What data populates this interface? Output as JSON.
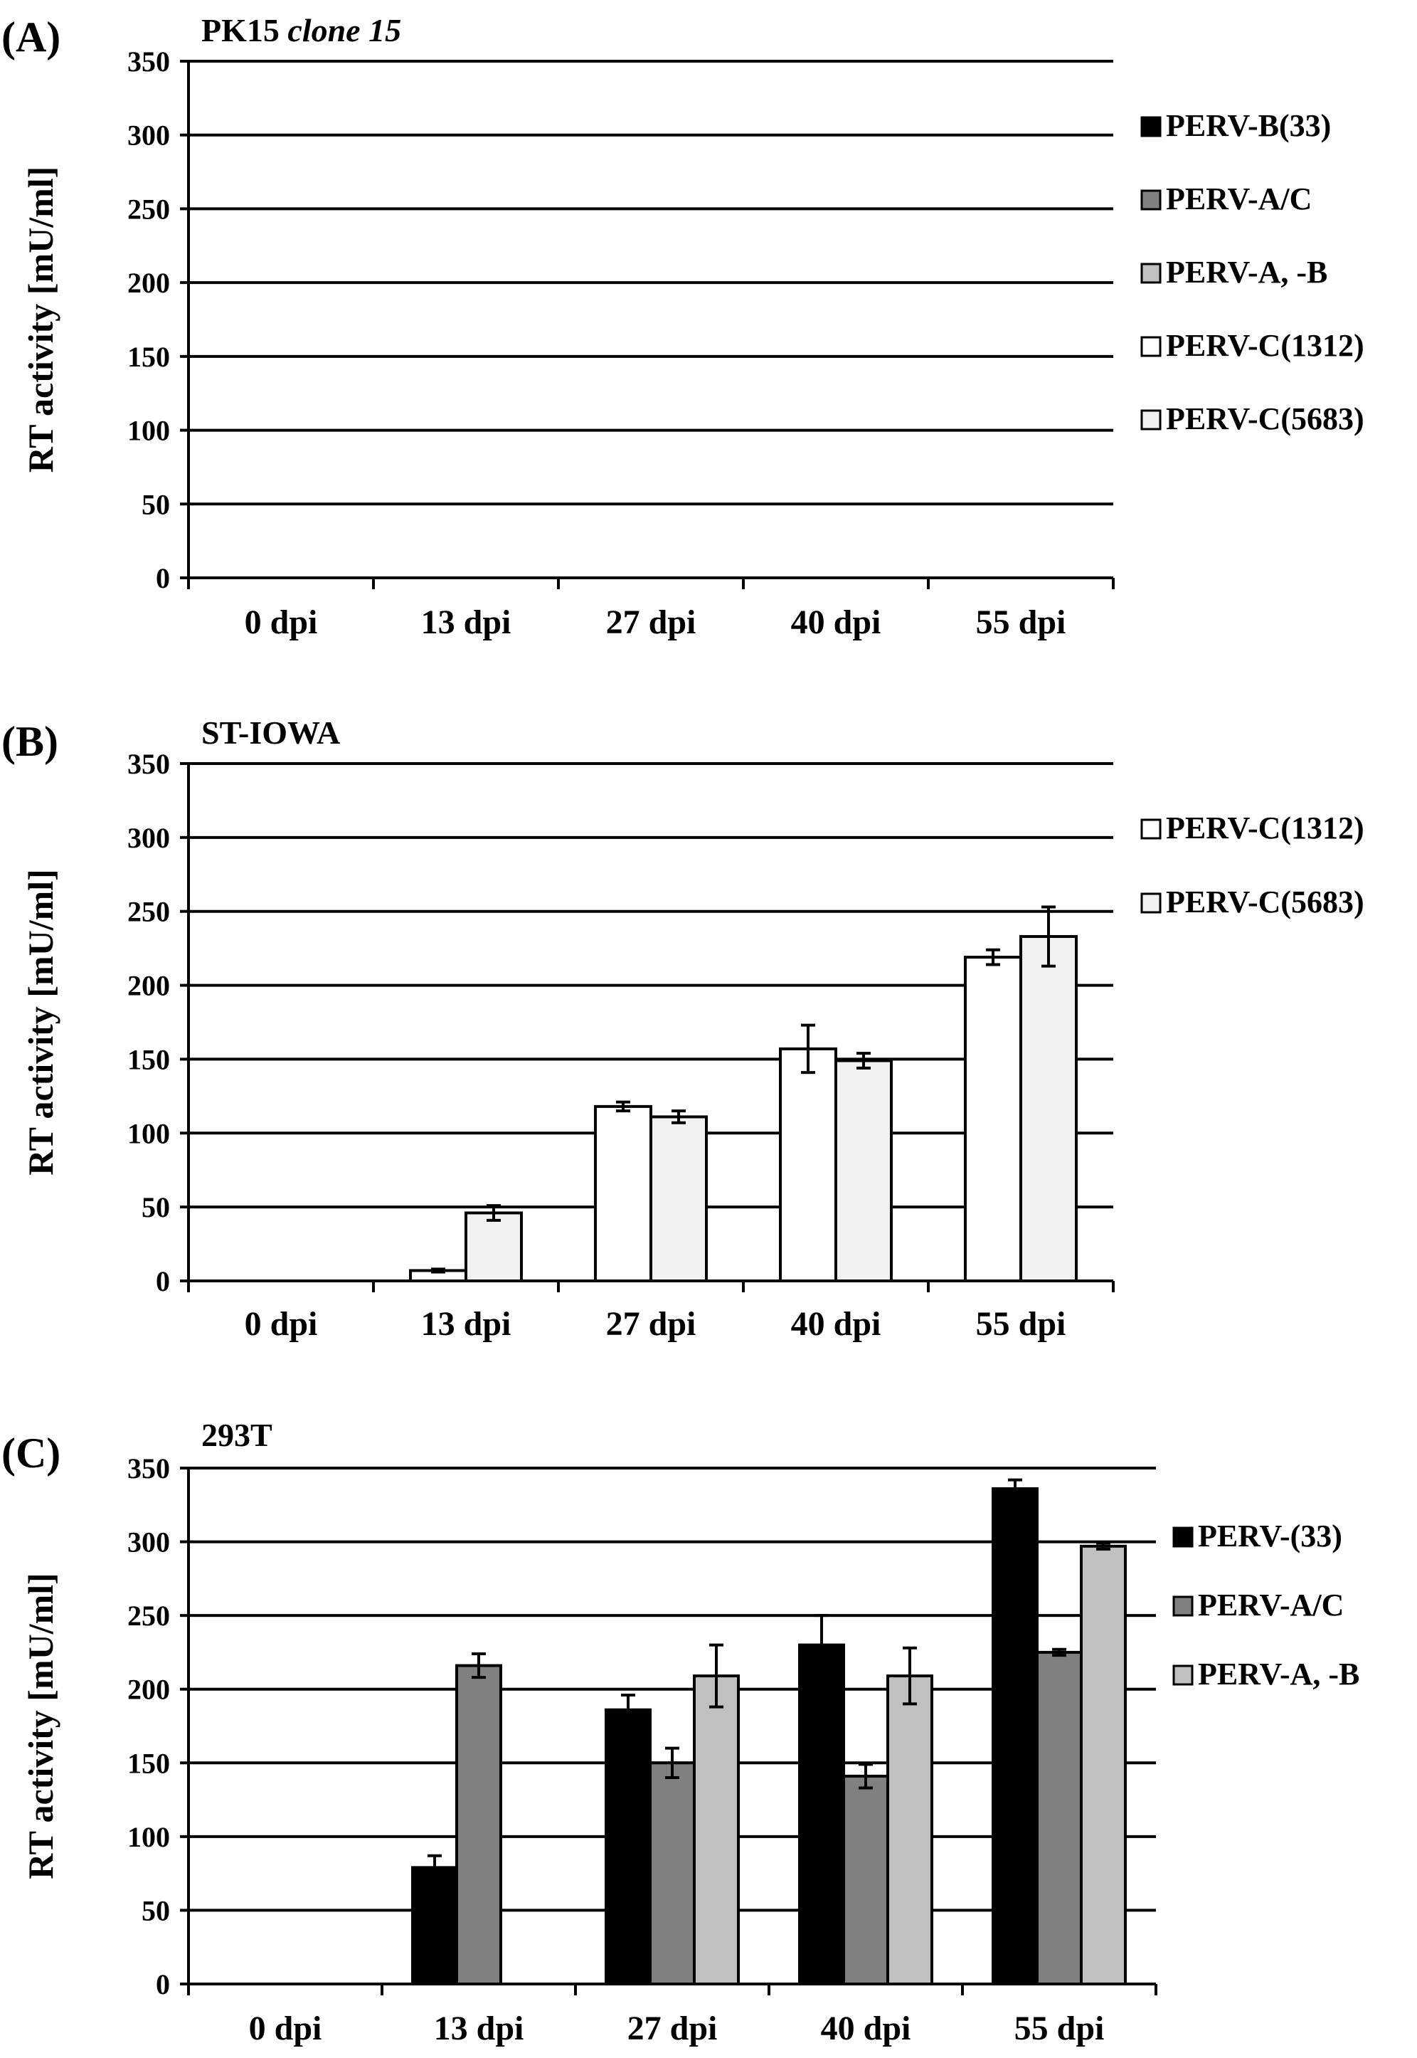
{
  "chart_data": [
    {
      "type": "bar",
      "panel_label": "(A)",
      "title": "PK15 ",
      "title_italic": "clone 15",
      "ylabel": "RT activity [mU/ml]",
      "xlabel": "",
      "ylim": [
        0,
        350
      ],
      "yticks": [
        0,
        50,
        100,
        150,
        200,
        250,
        300,
        350
      ],
      "grid": true,
      "legend_position": "right",
      "categories": [
        "0 dpi",
        "13 dpi",
        "27 dpi",
        "40 dpi",
        "55 dpi"
      ],
      "legend": [
        {
          "name": "PERV-B(33)",
          "color": "#000000"
        },
        {
          "name": "PERV-A/C",
          "color": "#808080"
        },
        {
          "name": "PERV-A, -B",
          "color": "#c0c0c0"
        },
        {
          "name": "PERV-C(1312)",
          "color": "#ffffff"
        },
        {
          "name": "PERV-C(5683)",
          "color": "#f2f2f2"
        }
      ],
      "series": [
        {
          "name": "PERV-B(33)",
          "color": "#000000",
          "values": [
            0,
            0,
            0,
            0,
            0
          ],
          "errors": [
            0,
            0,
            0,
            0,
            0
          ]
        },
        {
          "name": "PERV-A/C",
          "color": "#808080",
          "values": [
            0,
            0,
            0,
            0,
            0
          ],
          "errors": [
            0,
            0,
            0,
            0,
            0
          ]
        },
        {
          "name": "PERV-A, -B",
          "color": "#c0c0c0",
          "values": [
            0,
            0,
            0,
            0,
            0
          ],
          "errors": [
            0,
            0,
            0,
            0,
            0
          ]
        },
        {
          "name": "PERV-C(1312)",
          "color": "#ffffff",
          "values": [
            0,
            0,
            0,
            0,
            0
          ],
          "errors": [
            0,
            0,
            0,
            0,
            0
          ]
        },
        {
          "name": "PERV-C(5683)",
          "color": "#f2f2f2",
          "values": [
            0,
            0,
            0,
            0,
            0
          ],
          "errors": [
            0,
            0,
            0,
            0,
            0
          ]
        }
      ]
    },
    {
      "type": "bar",
      "panel_label": "(B)",
      "title": "ST-IOWA",
      "title_italic": "",
      "ylabel": "RT activity [mU/ml]",
      "xlabel": "",
      "ylim": [
        0,
        350
      ],
      "yticks": [
        0,
        50,
        100,
        150,
        200,
        250,
        300,
        350
      ],
      "grid": true,
      "legend_position": "right",
      "categories": [
        "0 dpi",
        "13 dpi",
        "27 dpi",
        "40 dpi",
        "55 dpi"
      ],
      "legend": [
        {
          "name": "PERV-C(1312)",
          "color": "#ffffff"
        },
        {
          "name": "PERV-C(5683)",
          "color": "#f2f2f2"
        }
      ],
      "series": [
        {
          "name": "PERV-C(1312)",
          "color": "#ffffff",
          "values": [
            0,
            7,
            118,
            157,
            219
          ],
          "errors": [
            0,
            1,
            3,
            16,
            5
          ]
        },
        {
          "name": "PERV-C(5683)",
          "color": "#f2f2f2",
          "values": [
            0,
            46,
            111,
            149,
            233
          ],
          "errors": [
            0,
            5,
            4,
            5,
            20
          ]
        }
      ]
    },
    {
      "type": "bar",
      "panel_label": "(C)",
      "title": "293T",
      "title_italic": "",
      "ylabel": "RT activity [mU/ml]",
      "xlabel": "",
      "ylim": [
        0,
        350
      ],
      "yticks": [
        0,
        50,
        100,
        150,
        200,
        250,
        300,
        350
      ],
      "grid": true,
      "legend_position": "right",
      "categories": [
        "0 dpi",
        "13 dpi",
        "27 dpi",
        "40 dpi",
        "55 dpi"
      ],
      "legend": [
        {
          "name": "PERV-(33)",
          "color": "#000000"
        },
        {
          "name": "PERV-A/C",
          "color": "#808080"
        },
        {
          "name": "PERV-A, -B",
          "color": "#c0c0c0"
        }
      ],
      "series": [
        {
          "name": "PERV-(33)",
          "color": "#000000",
          "values": [
            0,
            79,
            186,
            230,
            336
          ],
          "errors": [
            0,
            8,
            10,
            20,
            6
          ]
        },
        {
          "name": "PERV-A/C",
          "color": "#808080",
          "values": [
            0,
            216,
            150,
            141,
            225
          ],
          "errors": [
            0,
            8,
            10,
            8,
            2
          ]
        },
        {
          "name": "PERV-A, -B",
          "color": "#c0c0c0",
          "values": [
            0,
            0,
            209,
            209,
            297
          ],
          "errors": [
            0,
            0,
            21,
            19,
            2
          ]
        }
      ]
    }
  ]
}
